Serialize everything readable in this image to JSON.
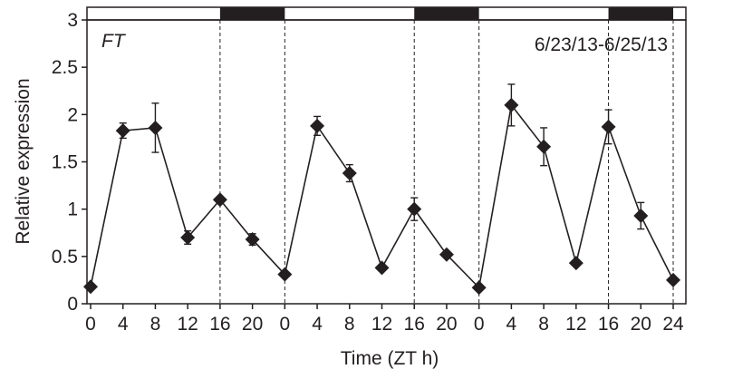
{
  "chart_data": {
    "type": "line",
    "gene_label": "FT",
    "date_range_label": "6/23/13-6/25/13",
    "xlabel": "Time (ZT h)",
    "ylabel": "Relative expression",
    "ylim": [
      0,
      3
    ],
    "yticks": [
      "0",
      "0.5",
      "1",
      "1.5",
      "2",
      "2.5",
      "3"
    ],
    "xtick_labels": [
      "0",
      "4",
      "8",
      "12",
      "16",
      "20",
      "0",
      "4",
      "8",
      "12",
      "16",
      "20",
      "0",
      "4",
      "8",
      "12",
      "16",
      "20",
      "24"
    ],
    "series": [
      {
        "values": [
          0.18,
          1.83,
          1.86,
          0.7,
          1.1,
          0.68,
          0.31,
          1.88,
          1.38,
          0.38,
          1.0,
          0.52,
          0.17,
          2.1,
          1.66,
          0.43,
          1.87,
          0.93,
          0.25
        ],
        "errors": [
          0.0,
          0.08,
          0.26,
          0.07,
          0.0,
          0.06,
          0.0,
          0.1,
          0.09,
          0.0,
          0.12,
          0.0,
          0.0,
          0.22,
          0.2,
          0.0,
          0.18,
          0.14,
          0.0
        ]
      }
    ],
    "dark_periods": [
      [
        16,
        24
      ],
      [
        40,
        48
      ],
      [
        64,
        72
      ]
    ],
    "dashed_lines_at": [
      16,
      24,
      40,
      48,
      64,
      72
    ],
    "grid": false,
    "marker": "diamond",
    "color": "#231f20"
  }
}
